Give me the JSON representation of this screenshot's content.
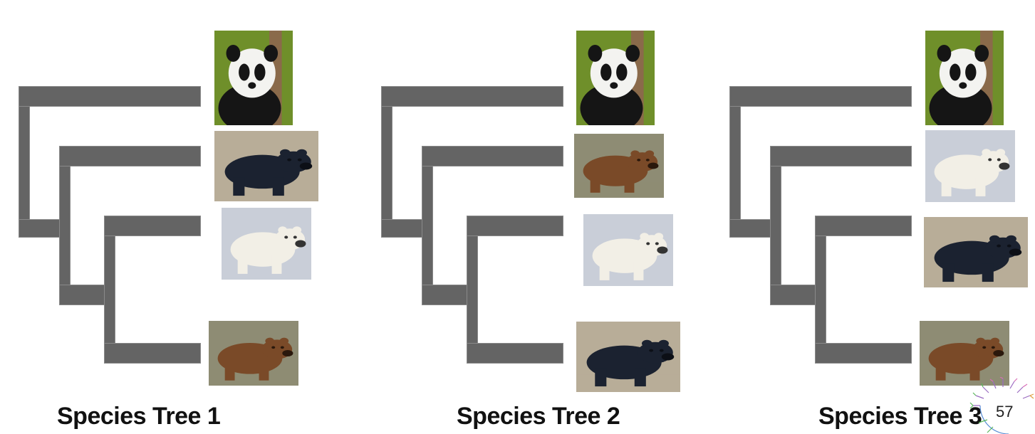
{
  "trees": [
    {
      "title": "Species Tree 1",
      "leaves": [
        {
          "animal": "giant panda",
          "icon": "panda-photo-icon",
          "palette": {
            "bg": "#6f8f2a",
            "body": "#f3f3f0",
            "dark": "#151515"
          }
        },
        {
          "animal": "american black bear",
          "icon": "black-bear-photo-icon",
          "palette": {
            "bg": "#b8ad98",
            "body": "#1b2230",
            "dark": "#0c0f16"
          }
        },
        {
          "animal": "polar bear",
          "icon": "polar-bear-photo-icon",
          "palette": {
            "bg": "#c9ced8",
            "body": "#f2efe6",
            "dark": "#333333"
          }
        },
        {
          "animal": "brown bear",
          "icon": "brown-bear-photo-icon",
          "palette": {
            "bg": "#8e8c74",
            "body": "#7a4a28",
            "dark": "#2a180c"
          }
        }
      ]
    },
    {
      "title": "Species Tree 2",
      "leaves": [
        {
          "animal": "giant panda",
          "icon": "panda-photo-icon",
          "palette": {
            "bg": "#6f8f2a",
            "body": "#f3f3f0",
            "dark": "#151515"
          }
        },
        {
          "animal": "brown bear",
          "icon": "brown-bear-photo-icon",
          "palette": {
            "bg": "#8e8c74",
            "body": "#7a4a28",
            "dark": "#2a180c"
          }
        },
        {
          "animal": "polar bear",
          "icon": "polar-bear-photo-icon",
          "palette": {
            "bg": "#c9ced8",
            "body": "#f2efe6",
            "dark": "#333333"
          }
        },
        {
          "animal": "american black bear",
          "icon": "black-bear-photo-icon",
          "palette": {
            "bg": "#b8ad98",
            "body": "#1b2230",
            "dark": "#0c0f16"
          }
        }
      ]
    },
    {
      "title": "Species Tree 3",
      "leaves": [
        {
          "animal": "giant panda",
          "icon": "panda-photo-icon",
          "palette": {
            "bg": "#6f8f2a",
            "body": "#f3f3f0",
            "dark": "#151515"
          }
        },
        {
          "animal": "polar bear",
          "icon": "polar-bear-photo-icon",
          "palette": {
            "bg": "#c9ced8",
            "body": "#f2efe6",
            "dark": "#333333"
          }
        },
        {
          "animal": "american black bear",
          "icon": "black-bear-photo-icon",
          "palette": {
            "bg": "#b8ad98",
            "body": "#1b2230",
            "dark": "#0c0f16"
          }
        },
        {
          "animal": "brown bear",
          "icon": "brown-bear-photo-icon",
          "palette": {
            "bg": "#8e8c74",
            "body": "#7a4a28",
            "dark": "#2a180c"
          }
        }
      ]
    }
  ],
  "slide_number": "57",
  "colors": {
    "branch": "#646464",
    "title": "#111111"
  }
}
